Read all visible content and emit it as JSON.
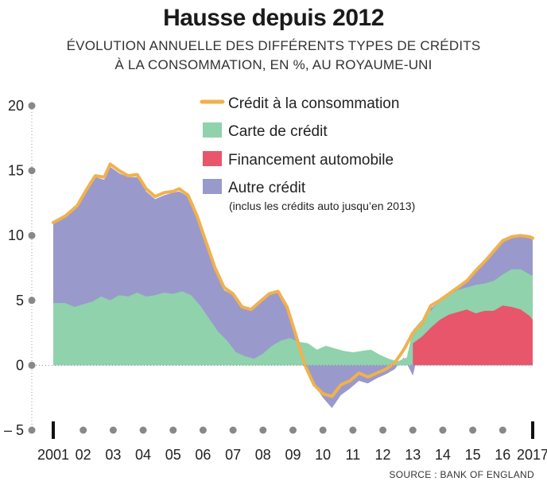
{
  "title": "Hausse depuis 2012",
  "subtitle_line1": "ÉVOLUTION ANNUELLE DES DIFFÉRENTS TYPES DE CRÉDITS",
  "subtitle_line2": "À LA CONSOMMATION, EN %, AU ROYAUME-UNI",
  "source": "SOURCE : BANK OF ENGLAND",
  "colors": {
    "total_line": "#f0b14e",
    "credit_card": "#8fd2ab",
    "car_finance": "#e8566b",
    "other_credit": "#9a99cc",
    "axis_text": "#222222",
    "dots": "#888888"
  },
  "chart_data": {
    "type": "area",
    "x_tick_labels": [
      "2001",
      "02",
      "03",
      "04",
      "05",
      "06",
      "07",
      "08",
      "09",
      "10",
      "11",
      "12",
      "13",
      "14",
      "15",
      "16",
      "2017"
    ],
    "x_tick_years": [
      2001,
      2002,
      2003,
      2004,
      2005,
      2006,
      2007,
      2008,
      2009,
      2010,
      2011,
      2012,
      2013,
      2014,
      2015,
      2016,
      2017
    ],
    "xlim": [
      2001,
      2017
    ],
    "y_ticks": [
      "20",
      "15",
      "10",
      "5",
      "0",
      "– 5"
    ],
    "y_tick_values": [
      20,
      15,
      10,
      5,
      0,
      -5
    ],
    "ylim": [
      -5,
      20
    ],
    "legend": {
      "placement": "top-right",
      "entries": [
        {
          "label": "Crédit à la consommation",
          "sublabel": ""
        },
        {
          "label": "Carte de crédit",
          "sublabel": ""
        },
        {
          "label": "Financement automobile",
          "sublabel": ""
        },
        {
          "label": "Autre crédit",
          "sublabel": "(inclus les crédits auto jusqu’en 2013)"
        }
      ]
    },
    "series": [
      {
        "name": "Crédit à la consommation",
        "kind": "line",
        "points": [
          [
            2001.0,
            11.0
          ],
          [
            2001.4,
            11.5
          ],
          [
            2001.8,
            12.3
          ],
          [
            2002.1,
            13.5
          ],
          [
            2002.4,
            14.6
          ],
          [
            2002.7,
            14.5
          ],
          [
            2002.9,
            15.5
          ],
          [
            2003.2,
            15.0
          ],
          [
            2003.5,
            14.6
          ],
          [
            2003.8,
            14.7
          ],
          [
            2004.1,
            13.6
          ],
          [
            2004.4,
            13.0
          ],
          [
            2004.7,
            13.3
          ],
          [
            2005.0,
            13.4
          ],
          [
            2005.2,
            13.6
          ],
          [
            2005.5,
            13.1
          ],
          [
            2005.8,
            11.5
          ],
          [
            2006.1,
            9.5
          ],
          [
            2006.4,
            7.5
          ],
          [
            2006.7,
            6.0
          ],
          [
            2007.0,
            5.5
          ],
          [
            2007.3,
            4.5
          ],
          [
            2007.6,
            4.3
          ],
          [
            2007.9,
            4.9
          ],
          [
            2008.2,
            5.5
          ],
          [
            2008.5,
            5.7
          ],
          [
            2008.8,
            4.5
          ],
          [
            2009.1,
            2.3
          ],
          [
            2009.4,
            0.0
          ],
          [
            2009.7,
            -1.5
          ],
          [
            2010.0,
            -2.2
          ],
          [
            2010.3,
            -2.4
          ],
          [
            2010.6,
            -1.5
          ],
          [
            2010.9,
            -1.2
          ],
          [
            2011.2,
            -0.6
          ],
          [
            2011.5,
            -0.9
          ],
          [
            2011.8,
            -0.6
          ],
          [
            2012.1,
            -0.3
          ],
          [
            2012.4,
            0.2
          ],
          [
            2012.7,
            1.2
          ],
          [
            2013.0,
            2.5
          ],
          [
            2013.3,
            3.2
          ],
          [
            2013.6,
            4.6
          ],
          [
            2013.9,
            5.0
          ],
          [
            2014.2,
            5.5
          ],
          [
            2014.5,
            6.0
          ],
          [
            2014.8,
            6.5
          ],
          [
            2015.1,
            7.3
          ],
          [
            2015.4,
            8.0
          ],
          [
            2015.7,
            8.8
          ],
          [
            2016.0,
            9.6
          ],
          [
            2016.3,
            9.9
          ],
          [
            2016.6,
            10.0
          ],
          [
            2016.9,
            9.9
          ],
          [
            2017.0,
            9.8
          ]
        ]
      },
      {
        "name": "Carte de crédit",
        "kind": "area",
        "points": [
          [
            2001.0,
            4.8
          ],
          [
            2001.4,
            4.8
          ],
          [
            2001.7,
            4.5
          ],
          [
            2002.0,
            4.7
          ],
          [
            2002.3,
            4.9
          ],
          [
            2002.6,
            5.3
          ],
          [
            2002.9,
            5.0
          ],
          [
            2003.2,
            5.4
          ],
          [
            2003.5,
            5.3
          ],
          [
            2003.8,
            5.6
          ],
          [
            2004.1,
            5.3
          ],
          [
            2004.4,
            5.4
          ],
          [
            2004.7,
            5.6
          ],
          [
            2005.0,
            5.5
          ],
          [
            2005.3,
            5.7
          ],
          [
            2005.6,
            5.4
          ],
          [
            2005.9,
            4.6
          ],
          [
            2006.2,
            3.6
          ],
          [
            2006.5,
            2.6
          ],
          [
            2006.8,
            1.9
          ],
          [
            2007.1,
            1.0
          ],
          [
            2007.4,
            0.7
          ],
          [
            2007.7,
            0.5
          ],
          [
            2008.0,
            0.9
          ],
          [
            2008.3,
            1.5
          ],
          [
            2008.6,
            1.9
          ],
          [
            2008.9,
            2.1
          ],
          [
            2009.2,
            1.8
          ],
          [
            2009.5,
            1.7
          ],
          [
            2009.8,
            1.2
          ],
          [
            2010.1,
            1.5
          ],
          [
            2010.4,
            1.3
          ],
          [
            2010.7,
            1.1
          ],
          [
            2011.0,
            1.0
          ],
          [
            2011.3,
            1.1
          ],
          [
            2011.6,
            1.2
          ],
          [
            2011.9,
            0.8
          ],
          [
            2012.2,
            0.5
          ],
          [
            2012.5,
            0.3
          ],
          [
            2012.8,
            0.6
          ],
          [
            2013.0,
            2.7
          ],
          [
            2013.3,
            3.5
          ],
          [
            2013.6,
            4.2
          ],
          [
            2013.9,
            5.0
          ],
          [
            2014.2,
            5.4
          ],
          [
            2014.5,
            5.8
          ],
          [
            2014.8,
            6.0
          ],
          [
            2015.1,
            6.2
          ],
          [
            2015.4,
            6.3
          ],
          [
            2015.7,
            6.5
          ],
          [
            2016.0,
            7.0
          ],
          [
            2016.3,
            7.4
          ],
          [
            2016.6,
            7.4
          ],
          [
            2016.9,
            7.0
          ],
          [
            2017.0,
            6.9
          ]
        ]
      },
      {
        "name": "Financement automobile",
        "kind": "area",
        "points": [
          [
            2013.0,
            1.7
          ],
          [
            2013.3,
            2.2
          ],
          [
            2013.6,
            2.9
          ],
          [
            2013.9,
            3.5
          ],
          [
            2014.2,
            3.9
          ],
          [
            2014.5,
            4.1
          ],
          [
            2014.8,
            4.3
          ],
          [
            2015.1,
            4.0
          ],
          [
            2015.4,
            4.2
          ],
          [
            2015.7,
            4.2
          ],
          [
            2016.0,
            4.6
          ],
          [
            2016.3,
            4.5
          ],
          [
            2016.6,
            4.3
          ],
          [
            2016.9,
            3.8
          ],
          [
            2017.0,
            3.5
          ]
        ]
      },
      {
        "name": "Autre crédit",
        "kind": "area",
        "points": [
          [
            2001.0,
            11.0
          ],
          [
            2001.4,
            11.4
          ],
          [
            2001.8,
            12.2
          ],
          [
            2002.1,
            13.4
          ],
          [
            2002.4,
            14.5
          ],
          [
            2002.7,
            14.3
          ],
          [
            2002.9,
            15.3
          ],
          [
            2003.2,
            14.8
          ],
          [
            2003.5,
            14.5
          ],
          [
            2003.8,
            14.5
          ],
          [
            2004.1,
            13.4
          ],
          [
            2004.4,
            12.8
          ],
          [
            2004.7,
            13.1
          ],
          [
            2005.0,
            13.3
          ],
          [
            2005.2,
            13.4
          ],
          [
            2005.5,
            13.0
          ],
          [
            2005.8,
            11.3
          ],
          [
            2006.1,
            9.3
          ],
          [
            2006.4,
            7.3
          ],
          [
            2006.7,
            5.8
          ],
          [
            2007.0,
            5.4
          ],
          [
            2007.3,
            4.4
          ],
          [
            2007.6,
            4.2
          ],
          [
            2007.9,
            4.8
          ],
          [
            2008.2,
            5.4
          ],
          [
            2008.5,
            5.6
          ],
          [
            2008.8,
            4.4
          ],
          [
            2009.1,
            2.2
          ],
          [
            2009.4,
            0.0
          ],
          [
            2009.7,
            -1.5
          ],
          [
            2010.0,
            -2.5
          ],
          [
            2010.3,
            -3.3
          ],
          [
            2010.6,
            -2.3
          ],
          [
            2010.9,
            -1.8
          ],
          [
            2011.2,
            -1.2
          ],
          [
            2011.5,
            -1.4
          ],
          [
            2011.8,
            -1.0
          ],
          [
            2012.1,
            -0.7
          ],
          [
            2012.4,
            -0.3
          ],
          [
            2012.7,
            0.6
          ],
          [
            2013.0,
            -0.8
          ],
          [
            2013.3,
            2.2
          ],
          [
            2013.6,
            4.4
          ],
          [
            2013.9,
            4.9
          ],
          [
            2014.2,
            5.4
          ],
          [
            2014.5,
            5.9
          ],
          [
            2014.8,
            6.4
          ],
          [
            2015.1,
            7.2
          ],
          [
            2015.4,
            7.9
          ],
          [
            2015.7,
            8.7
          ],
          [
            2016.0,
            9.5
          ],
          [
            2016.3,
            9.8
          ],
          [
            2016.6,
            9.9
          ],
          [
            2016.9,
            9.8
          ],
          [
            2017.0,
            9.7
          ]
        ]
      }
    ]
  }
}
